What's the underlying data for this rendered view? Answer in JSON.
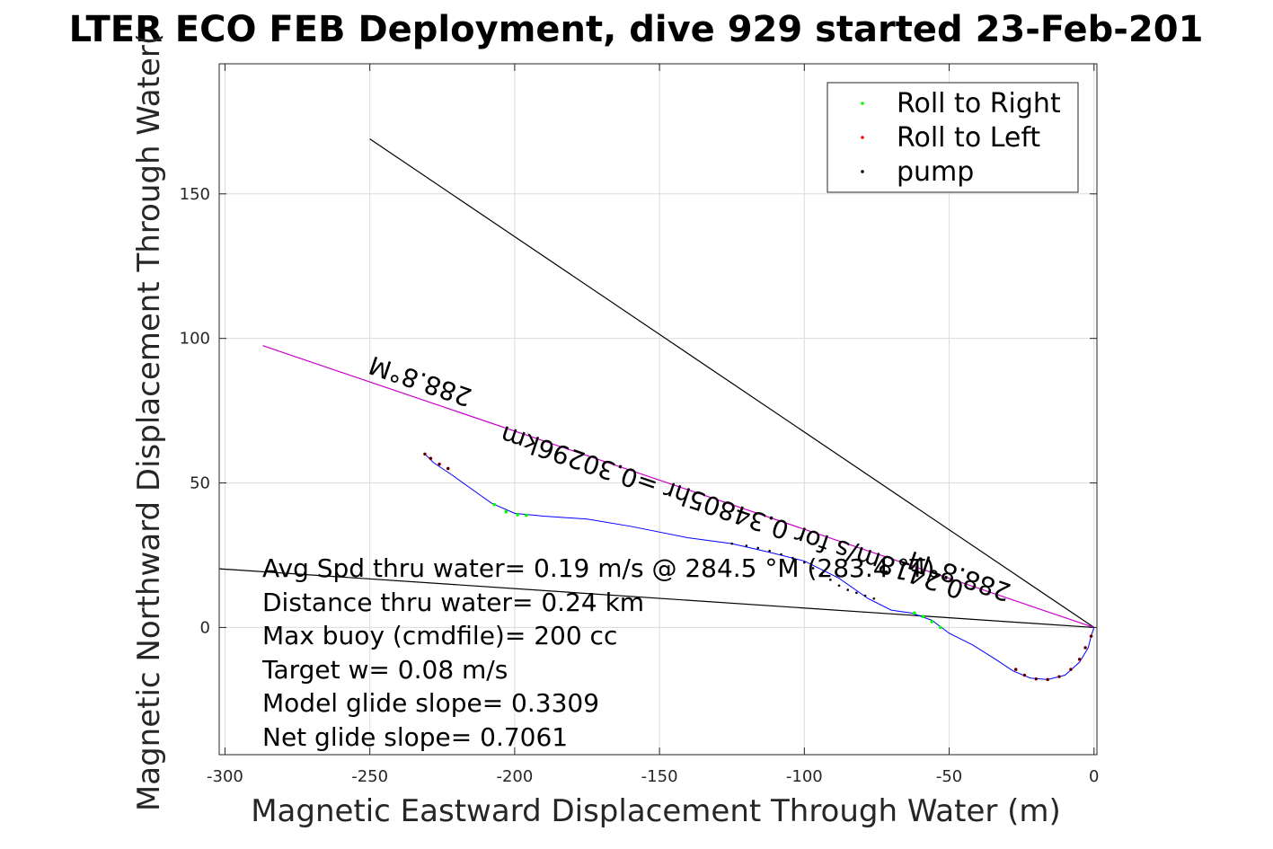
{
  "chart_data": {
    "type": "scatter",
    "title": "LTER ECO FEB Deployment, dive 929 started 23-Feb-201",
    "xlabel": "Magnetic Eastward Displacement Through Water (m)",
    "ylabel": "Magnetic Northward Displacement Through Water(",
    "xlim": [
      -302,
      1
    ],
    "ylim": [
      -44,
      195
    ],
    "grid": true,
    "x_ticks": [
      -300,
      -250,
      -200,
      -150,
      -100,
      -50,
      0
    ],
    "x_tick_labels": [
      "-300",
      "-250",
      "-200",
      "-150",
      "-100",
      "-50",
      "0"
    ],
    "y_ticks": [
      0,
      50,
      100,
      150
    ],
    "y_tick_labels": [
      "0",
      "50",
      "100",
      "150"
    ],
    "legend": {
      "position": "top-right",
      "entries": [
        {
          "label": "Roll to Right",
          "color": "#00ff00"
        },
        {
          "label": "Roll to Left",
          "color": "#ff0000"
        },
        {
          "label": "pump",
          "color": "#000000"
        }
      ]
    },
    "lines": [
      {
        "color": "#000000",
        "x": [
          -250,
          0
        ],
        "y": [
          169,
          0
        ]
      },
      {
        "color": "#000000",
        "x": [
          -302,
          0
        ],
        "y": [
          20.3,
          0
        ]
      },
      {
        "color": "#cc00cc",
        "x": [
          -287,
          0
        ],
        "y": [
          97.5,
          0
        ]
      }
    ],
    "track": {
      "color": "#0000ff",
      "x": [
        -231,
        -228,
        -222,
        -215,
        -208,
        -200,
        -190,
        -175,
        -160,
        -140,
        -125,
        -112,
        -100,
        -88,
        -78,
        -70,
        -63,
        -56,
        -50,
        -42,
        -34,
        -28,
        -22,
        -16,
        -10,
        -5,
        -2,
        -1,
        0
      ],
      "y": [
        60,
        57,
        53,
        48,
        43,
        39.5,
        38.5,
        37.5,
        35,
        31,
        29,
        26,
        23,
        17,
        10,
        6,
        5,
        2.5,
        -2,
        -6,
        -11,
        -15,
        -17.5,
        -18,
        -16.5,
        -12,
        -7,
        -3,
        0
      ]
    },
    "roll_right_points": {
      "color": "#00ff00",
      "x": [
        -207,
        -203,
        -199,
        -196,
        -62,
        -59,
        -56,
        -53
      ],
      "y": [
        42.5,
        40,
        39,
        38.8,
        5,
        3.8,
        2,
        0
      ]
    },
    "roll_left_points": {
      "color": "#ff0000",
      "x": [
        -231,
        -229,
        -226,
        -223,
        -27,
        -24,
        -20,
        -16,
        -12,
        -8,
        -5,
        -3,
        -1
      ],
      "y": [
        60,
        58.5,
        56.5,
        55,
        -14.5,
        -16.5,
        -17.8,
        -18,
        -17,
        -14.5,
        -11,
        -7,
        -3
      ]
    },
    "pump_points": {
      "color": "#000000",
      "x": [
        -231,
        -229,
        -226,
        -223,
        -125,
        -120,
        -116,
        -112,
        -108,
        -104,
        -100,
        -97,
        -94,
        -91,
        -88,
        -85,
        -82,
        -79,
        -76,
        -27,
        -24,
        -20,
        -16,
        -12,
        -8,
        -5,
        -3,
        -1
      ],
      "y": [
        60,
        58.5,
        56.5,
        55,
        29,
        28.3,
        27.5,
        26.5,
        25.3,
        24,
        22.5,
        20.5,
        18.5,
        16.5,
        14.5,
        13,
        12,
        11,
        10,
        -14.5,
        -16.5,
        -17.8,
        -18,
        -17,
        -14.5,
        -11,
        -7,
        -3
      ]
    },
    "line_labels": [
      "288.8°M",
      "0.2418m/s for 0.34805hr =0.30296km",
      "288.8°M"
    ],
    "annotations": [
      "Avg Spd thru water=  0.19 m/s @ 284.5 °M (283.4 °T)",
      "Distance thru water=  0.24 km",
      "Max buoy (cmdfile)= 200 cc",
      "Target w= 0.08 m/s",
      "Model glide slope= 0.3309",
      "Net glide slope= 0.7061"
    ]
  }
}
